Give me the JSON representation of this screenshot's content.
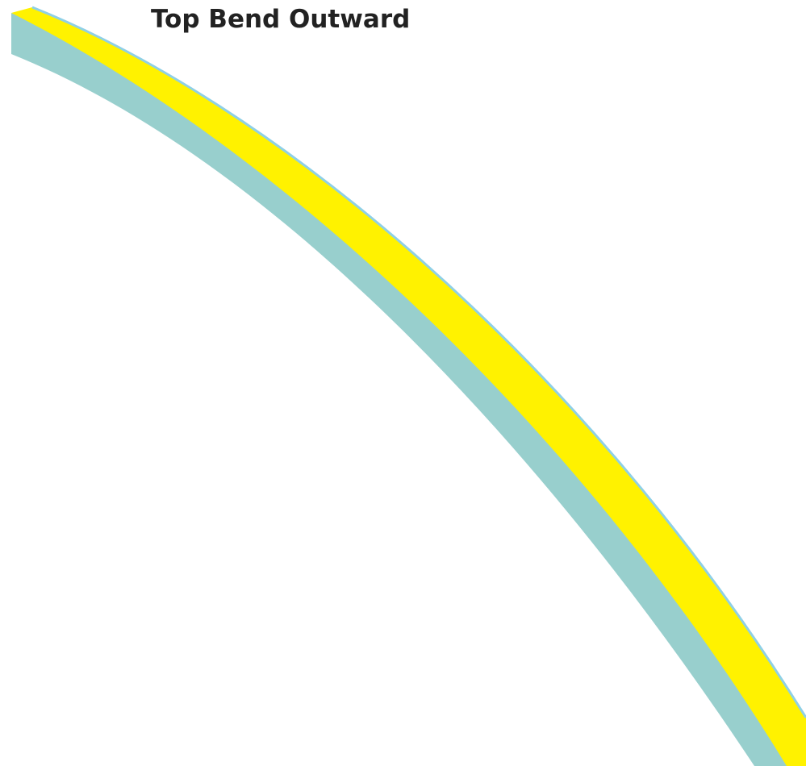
{
  "title": "Top Bend Outward",
  "colors": {
    "strip_side": "#98cfcd",
    "strip_top": "#fff200",
    "strip_edge": "#8fd0e6",
    "title": "#222222",
    "background": "#ffffff"
  }
}
